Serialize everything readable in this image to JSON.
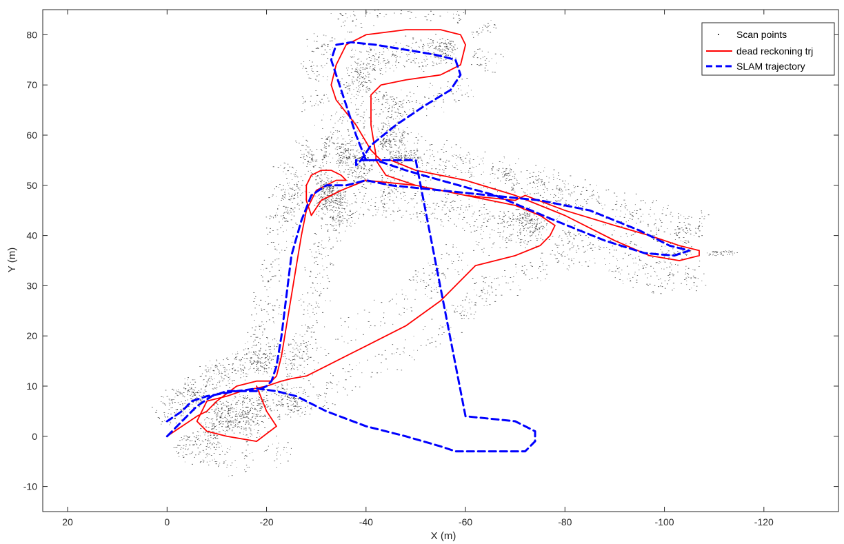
{
  "chart_data": {
    "type": "line",
    "title": "",
    "xlabel": "X (m)",
    "ylabel": "Y (m)",
    "xlim": [
      25,
      -135
    ],
    "ylim": [
      -15,
      85
    ],
    "x_reversed": true,
    "grid": false,
    "legend_position": "top-right",
    "xticks": [
      20,
      0,
      -20,
      -40,
      -60,
      -80,
      -100,
      -120
    ],
    "xtick_labels": [
      "20",
      "0",
      "-20",
      "-40",
      "-60",
      "-80",
      "-100",
      "-120"
    ],
    "yticks": [
      -10,
      0,
      10,
      20,
      30,
      40,
      50,
      60,
      70,
      80
    ],
    "ytick_labels": [
      "-10",
      "0",
      "10",
      "20",
      "30",
      "40",
      "50",
      "60",
      "70",
      "80"
    ],
    "series": [
      {
        "name": "Scan points",
        "style": "points",
        "color": "#000000",
        "points_approx_count": 6000
      },
      {
        "name": "dead reckoning trj",
        "style": "solid",
        "color": "#ff0000",
        "x": [
          0,
          -3,
          -6,
          -7,
          -8,
          -10,
          -14,
          -18,
          -21,
          -22,
          -23,
          -24,
          -25,
          -26,
          -27,
          -28,
          -30,
          -34,
          -36,
          -35,
          -33,
          -31,
          -29,
          -28,
          -28,
          -29,
          -31,
          -35,
          -40,
          -50,
          -60,
          -70,
          -72,
          -80,
          -90,
          -97,
          -103,
          -107,
          -107,
          -103,
          -97,
          -90,
          -80,
          -70,
          -60,
          -50,
          -45,
          -43,
          -42,
          -41,
          -41,
          -43,
          -48,
          -55,
          -59,
          -60,
          -59,
          -55,
          -48,
          -40,
          -36,
          -34,
          -33,
          -34,
          -38,
          -41,
          -42,
          -42,
          -44,
          -50,
          -60,
          -70,
          -75,
          -78,
          -77,
          -75,
          -70,
          -62,
          -58,
          -55,
          -48,
          -40,
          -32,
          -28,
          -25,
          -23,
          -20,
          -15,
          -12,
          -8,
          -6,
          -8,
          -12,
          -18,
          -22,
          -20,
          -18
        ],
        "y": [
          0,
          2,
          4,
          4.5,
          5,
          7,
          10,
          11,
          11,
          12,
          16,
          22,
          28,
          34,
          40,
          45,
          49,
          51,
          51,
          52,
          53,
          53,
          52,
          50,
          47,
          44,
          47,
          49,
          51,
          50,
          48,
          47,
          48,
          45,
          42,
          40,
          38,
          37,
          36,
          35,
          36,
          39,
          44,
          48,
          51,
          53,
          55,
          55,
          56,
          62,
          68,
          70,
          71,
          72,
          74,
          78,
          80,
          81,
          81,
          80,
          78,
          74,
          70,
          67,
          62,
          57,
          56,
          55,
          52,
          50,
          48,
          46,
          44,
          42,
          40,
          38,
          36,
          34,
          30,
          27,
          22,
          18,
          14,
          12,
          11.5,
          11,
          10,
          9,
          8,
          7,
          3,
          1,
          0,
          -1,
          2,
          5,
          10
        ]
      },
      {
        "name": "SLAM trajectory",
        "style": "dashed",
        "color": "#0000ff",
        "x": [
          0,
          -3,
          -6,
          -9,
          -12,
          -15,
          -18,
          -20,
          -21,
          -22,
          -23,
          -24,
          -25,
          -27,
          -29,
          -32,
          -36,
          -40,
          -45,
          -55,
          -65,
          -75,
          -85,
          -95,
          -101,
          -105,
          -102,
          -96,
          -88,
          -78,
          -66,
          -55,
          -48,
          -45,
          -42,
          -40,
          -38,
          -36,
          -34,
          -33,
          -34,
          -37,
          -42,
          -48,
          -54,
          -58,
          -59,
          -57,
          -52,
          -46,
          -41,
          -39,
          -38,
          -38,
          -40,
          -44,
          -50,
          -60,
          -70,
          -74,
          -74,
          -72,
          -65,
          -58,
          -55,
          -48,
          -40,
          -32,
          -26,
          -22,
          -18,
          -14,
          -11,
          -8,
          -5,
          -3,
          0
        ],
        "y": [
          0,
          3,
          6,
          8,
          9,
          9,
          9,
          10,
          11,
          14,
          20,
          28,
          36,
          43,
          48,
          50,
          50,
          51,
          50,
          49,
          48,
          47,
          45,
          41,
          38,
          37,
          36,
          36.5,
          39,
          43,
          48,
          51,
          53,
          54,
          55,
          55,
          60,
          66,
          72,
          75,
          78,
          78.5,
          78,
          77,
          76,
          75,
          72,
          69,
          66,
          62,
          58,
          55,
          54,
          55,
          55,
          55,
          55,
          4,
          3,
          1,
          -1,
          -3,
          -3,
          -3,
          -2,
          0,
          2,
          5,
          8,
          9,
          9.5,
          9,
          8.5,
          8,
          7,
          5,
          3
        ]
      }
    ]
  }
}
